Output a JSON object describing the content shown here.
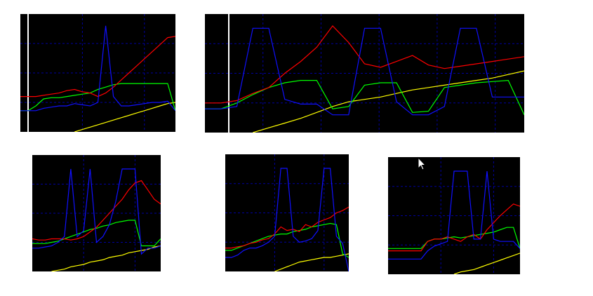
{
  "chart_data": [
    {
      "type": "line",
      "grid": true,
      "x": [
        0,
        1,
        2,
        3,
        4,
        5,
        6,
        7,
        8,
        9,
        10,
        11,
        12,
        13,
        14,
        15,
        16,
        17,
        18,
        19,
        20
      ],
      "xlim": [
        0,
        20
      ],
      "ylim": [
        0,
        100
      ],
      "series": [
        {
          "color": "#ffff00",
          "values": [
            null,
            null,
            null,
            null,
            null,
            null,
            null,
            0,
            2,
            4,
            6,
            8,
            10,
            12,
            14,
            16,
            18,
            20,
            22,
            24,
            25
          ]
        },
        {
          "color": "#00ff00",
          "values": [
            18,
            18,
            22,
            28,
            29,
            29,
            30,
            31,
            32,
            33,
            36,
            38,
            40,
            41,
            41,
            41,
            41,
            41,
            41,
            41,
            18
          ]
        },
        {
          "color": "#ff0000",
          "values": [
            30,
            30,
            30,
            31,
            32,
            33,
            35,
            36,
            34,
            33,
            30,
            33,
            38,
            44,
            50,
            56,
            62,
            68,
            74,
            80,
            81
          ]
        },
        {
          "color": "#1010ff",
          "values": [
            18,
            18,
            18,
            20,
            21,
            22,
            22,
            24,
            23,
            22,
            25,
            90,
            30,
            22,
            22,
            23,
            24,
            25,
            25,
            26,
            18
          ]
        }
      ]
    },
    {
      "type": "line",
      "grid": true,
      "x": [
        0,
        1,
        2,
        3,
        4,
        5,
        6,
        7,
        8,
        9,
        10,
        11,
        12,
        13,
        14,
        15,
        16,
        17,
        18,
        19,
        20
      ],
      "xlim": [
        0,
        20
      ],
      "ylim": [
        0,
        100
      ],
      "series": [
        {
          "color": "#ffff00",
          "values": [
            null,
            null,
            null,
            0,
            4,
            8,
            12,
            17,
            22,
            26,
            28,
            30,
            33,
            36,
            38,
            40,
            42,
            44,
            46,
            49,
            52
          ]
        },
        {
          "color": "#00ff00",
          "values": [
            20,
            20,
            25,
            32,
            38,
            42,
            44,
            44,
            20,
            22,
            40,
            42,
            42,
            17,
            18,
            38,
            40,
            42,
            43,
            44,
            15
          ]
        },
        {
          "color": "#ff0000",
          "values": [
            25,
            25,
            27,
            33,
            38,
            50,
            60,
            72,
            90,
            76,
            58,
            55,
            60,
            65,
            57,
            54,
            56,
            58,
            60,
            62,
            64
          ]
        },
        {
          "color": "#1010ff",
          "values": [
            20,
            20,
            22,
            88,
            88,
            28,
            24,
            24,
            15,
            15,
            88,
            88,
            26,
            15,
            15,
            22,
            88,
            88,
            30,
            30,
            30
          ]
        }
      ]
    },
    {
      "type": "line",
      "grid": true,
      "x": [
        0,
        1,
        2,
        3,
        4,
        5,
        6,
        7,
        8,
        9,
        10,
        11,
        12,
        13,
        14,
        15,
        16,
        17,
        18,
        19,
        20
      ],
      "xlim": [
        0,
        20
      ],
      "ylim": [
        0,
        100
      ],
      "series": [
        {
          "color": "#ffff00",
          "values": [
            null,
            null,
            null,
            0,
            1,
            2,
            4,
            5,
            6,
            8,
            9,
            10,
            12,
            13,
            14,
            16,
            17,
            18,
            19,
            21,
            22
          ]
        },
        {
          "color": "#00ff00",
          "values": [
            24,
            24,
            24,
            25,
            26,
            28,
            30,
            32,
            34,
            36,
            37,
            39,
            40,
            42,
            43,
            44,
            44,
            22,
            22,
            22,
            28
          ]
        },
        {
          "color": "#ff0000",
          "values": [
            28,
            27,
            27,
            28,
            28,
            28,
            27,
            28,
            30,
            34,
            38,
            44,
            50,
            56,
            62,
            70,
            76,
            78,
            70,
            62,
            58
          ]
        },
        {
          "color": "#1010ff",
          "values": [
            20,
            20,
            21,
            22,
            25,
            30,
            88,
            30,
            35,
            88,
            25,
            30,
            40,
            60,
            88,
            88,
            88,
            15,
            20,
            20,
            22
          ]
        }
      ]
    },
    {
      "type": "line",
      "grid": true,
      "x": [
        0,
        1,
        2,
        3,
        4,
        5,
        6,
        7,
        8,
        9,
        10,
        11,
        12,
        13,
        14,
        15,
        16,
        17,
        18,
        19,
        20
      ],
      "xlim": [
        0,
        20
      ],
      "ylim": [
        0,
        100
      ],
      "series": [
        {
          "color": "#ffff00",
          "values": [
            null,
            null,
            null,
            null,
            null,
            null,
            null,
            null,
            0,
            2,
            4,
            6,
            8,
            9,
            10,
            11,
            12,
            12,
            13,
            14,
            15
          ]
        },
        {
          "color": "#00ff00",
          "values": [
            18,
            18,
            20,
            22,
            24,
            26,
            28,
            30,
            31,
            32,
            32,
            34,
            35,
            36,
            38,
            39,
            40,
            41,
            40,
            15,
            12
          ]
        },
        {
          "color": "#ff0000",
          "values": [
            20,
            20,
            21,
            22,
            24,
            25,
            27,
            28,
            32,
            38,
            35,
            36,
            34,
            40,
            38,
            42,
            44,
            46,
            50,
            52,
            55
          ]
        },
        {
          "color": "#1010ff",
          "values": [
            12,
            12,
            14,
            18,
            20,
            20,
            22,
            25,
            30,
            88,
            88,
            30,
            25,
            26,
            28,
            35,
            88,
            88,
            30,
            24,
            0
          ]
        }
      ]
    },
    {
      "type": "line",
      "grid": true,
      "x": [
        0,
        1,
        2,
        3,
        4,
        5,
        6,
        7,
        8,
        9,
        10,
        11,
        12,
        13,
        14,
        15,
        16,
        17,
        18,
        19,
        20
      ],
      "xlim": [
        0,
        20
      ],
      "ylim": [
        0,
        100
      ],
      "series": [
        {
          "color": "#ffff00",
          "values": [
            null,
            null,
            null,
            null,
            null,
            null,
            null,
            null,
            null,
            null,
            0,
            2,
            3,
            4,
            6,
            8,
            10,
            12,
            14,
            16,
            18
          ]
        },
        {
          "color": "#00ff00",
          "values": [
            22,
            22,
            22,
            22,
            22,
            22,
            28,
            30,
            30,
            31,
            32,
            31,
            32,
            33,
            34,
            35,
            36,
            38,
            40,
            40,
            22
          ]
        },
        {
          "color": "#ff0000",
          "values": [
            20,
            20,
            20,
            20,
            20,
            20,
            28,
            30,
            30,
            32,
            30,
            28,
            32,
            34,
            30,
            38,
            44,
            50,
            55,
            60,
            58
          ]
        },
        {
          "color": "#1010ff",
          "values": [
            13,
            13,
            13,
            13,
            13,
            13,
            20,
            24,
            26,
            28,
            88,
            88,
            88,
            30,
            30,
            88,
            30,
            28,
            28,
            28,
            22
          ]
        }
      ]
    }
  ]
}
